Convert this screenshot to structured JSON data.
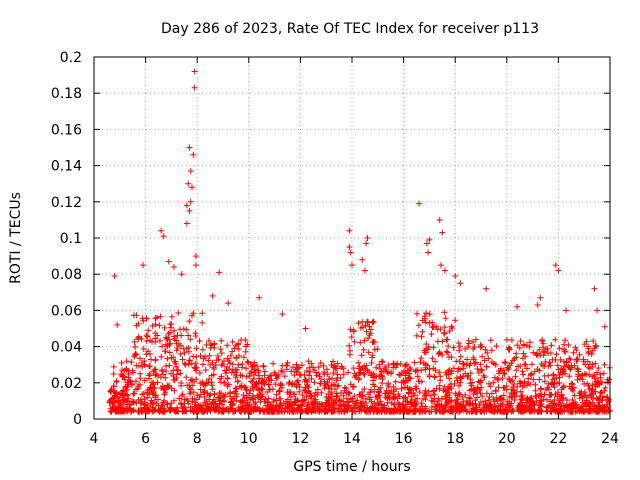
{
  "chart_data": {
    "type": "scatter",
    "title": "Day 286 of 2023, Rate Of TEC Index for receiver p113",
    "xlabel": "GPS time / hours",
    "ylabel": "ROTI / TECUs",
    "xlim": [
      4,
      24
    ],
    "ylim": [
      0,
      0.2
    ],
    "xticks": [
      4,
      6,
      8,
      10,
      12,
      14,
      16,
      18,
      20,
      22,
      24
    ],
    "yticks": [
      0,
      0.02,
      0.04,
      0.06,
      0.08,
      0.1,
      0.12,
      0.14,
      0.16,
      0.18,
      0.2
    ],
    "grid": true,
    "marker": "+",
    "color": "#ff0000",
    "series": [
      {
        "points": [
          [
            4.8,
            0.079
          ],
          [
            4.9,
            0.052
          ],
          [
            5.9,
            0.085
          ],
          [
            6.6,
            0.104
          ],
          [
            6.7,
            0.101
          ],
          [
            6.9,
            0.087
          ],
          [
            7.1,
            0.084
          ],
          [
            7.4,
            0.08
          ],
          [
            7.6,
            0.108
          ],
          [
            7.6,
            0.118
          ],
          [
            7.65,
            0.13
          ],
          [
            7.7,
            0.15
          ],
          [
            7.75,
            0.137
          ],
          [
            7.8,
            0.128
          ],
          [
            7.7,
            0.115
          ],
          [
            7.75,
            0.12
          ],
          [
            7.85,
            0.146
          ],
          [
            7.9,
            0.183
          ],
          [
            7.9,
            0.192
          ],
          [
            7.95,
            0.09
          ],
          [
            7.95,
            0.085
          ],
          [
            8.85,
            0.081
          ],
          [
            8.6,
            0.068
          ],
          [
            9.2,
            0.064
          ],
          [
            10.4,
            0.067
          ],
          [
            11.3,
            0.058
          ],
          [
            12.2,
            0.05
          ],
          [
            13.9,
            0.104
          ],
          [
            13.9,
            0.095
          ],
          [
            13.95,
            0.092
          ],
          [
            14.0,
            0.085
          ],
          [
            14.4,
            0.088
          ],
          [
            14.6,
            0.1
          ],
          [
            14.55,
            0.097
          ],
          [
            14.5,
            0.082
          ],
          [
            16.6,
            0.119
          ],
          [
            16.9,
            0.097
          ],
          [
            16.95,
            0.092
          ],
          [
            17.0,
            0.099
          ],
          [
            17.4,
            0.11
          ],
          [
            17.5,
            0.103
          ],
          [
            17.45,
            0.085
          ],
          [
            17.6,
            0.082
          ],
          [
            18.0,
            0.079
          ],
          [
            18.2,
            0.075
          ],
          [
            19.2,
            0.072
          ],
          [
            20.4,
            0.062
          ],
          [
            21.2,
            0.063
          ],
          [
            21.3,
            0.067
          ],
          [
            21.9,
            0.085
          ],
          [
            22.0,
            0.082
          ],
          [
            23.4,
            0.072
          ],
          [
            23.5,
            0.06
          ],
          [
            22.3,
            0.06
          ],
          [
            23.8,
            0.051
          ]
        ]
      }
    ]
  }
}
